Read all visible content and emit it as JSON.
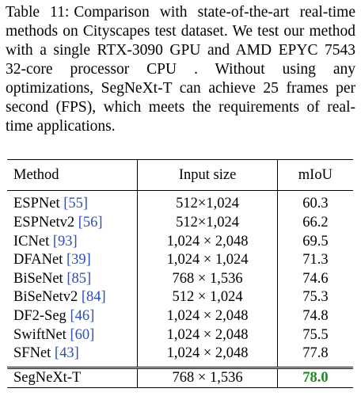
{
  "caption": {
    "label": "Table 11:",
    "text": "Comparison with state-of-the-art real-time methods on Cityscapes test dataset. We test our method with a single RTX-3090 GPU and AMD EPYC 7543 32-core processor CPU . Without using any optimizations, SegNeXt-T can achieve 25 frames per second (FPS), which meets the requirements of real-time applications."
  },
  "table": {
    "headers": [
      "Method",
      "Input size",
      "mIoU"
    ],
    "rows": [
      {
        "method": "ESPNet",
        "ref": "[55]",
        "input": "512×1,024",
        "miou": "60.3"
      },
      {
        "method": "ESPNetv2",
        "ref": "[56]",
        "input": "512×1,024",
        "miou": "66.2"
      },
      {
        "method": "ICNet",
        "ref": "[93]",
        "input": "1,024 × 2,048",
        "miou": "69.5"
      },
      {
        "method": "DFANet",
        "ref": "[39]",
        "input": "1,024 × 1,024",
        "miou": "71.3"
      },
      {
        "method": "BiSeNet",
        "ref": "[85]",
        "input": "768 × 1,536",
        "miou": "74.6"
      },
      {
        "method": "BiSeNetv2",
        "ref": "[84]",
        "input": "512 × 1,024",
        "miou": "75.3"
      },
      {
        "method": "DF2-Seg",
        "ref": "[46]",
        "input": "1,024 × 2,048",
        "miou": "74.8"
      },
      {
        "method": "SwiftNet",
        "ref": "[60]",
        "input": "1,024 × 2,048",
        "miou": "75.5"
      },
      {
        "method": "SFNet",
        "ref": "[43]",
        "input": "1,024 × 2,048",
        "miou": "77.8"
      }
    ],
    "ours": {
      "method": "SegNeXt-T",
      "input": "768 × 1,536",
      "miou": "78.0"
    }
  },
  "colors": {
    "reference_link": "#2a4fb4",
    "best_result": "#1f8b1f"
  }
}
